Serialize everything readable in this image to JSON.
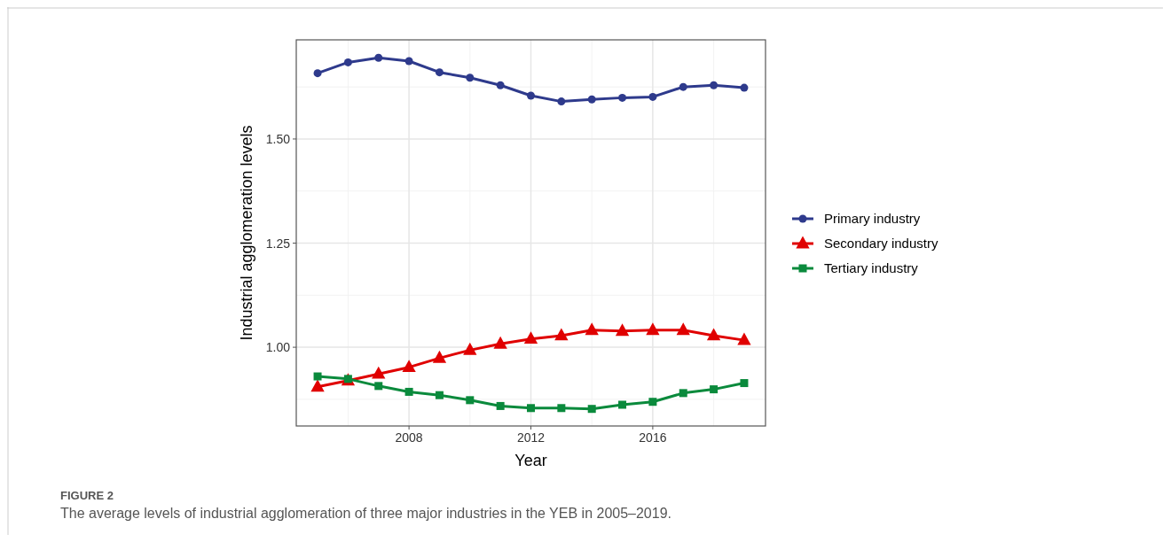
{
  "chart_data": {
    "type": "line",
    "xlabel": "Year",
    "ylabel": "Industrial agglomeration levels",
    "x": [
      2005,
      2006,
      2007,
      2008,
      2009,
      2010,
      2011,
      2012,
      2013,
      2014,
      2015,
      2016,
      2017,
      2018,
      2019
    ],
    "series": [
      {
        "name": "Primary industry",
        "color": "#2e3a8c",
        "marker": "circle",
        "values": [
          1.658,
          1.684,
          1.695,
          1.687,
          1.66,
          1.647,
          1.629,
          1.604,
          1.59,
          1.595,
          1.599,
          1.601,
          1.625,
          1.629,
          1.623
        ]
      },
      {
        "name": "Secondary industry",
        "color": "#e00000",
        "marker": "triangle",
        "values": [
          0.905,
          0.92,
          0.936,
          0.952,
          0.974,
          0.993,
          1.008,
          1.02,
          1.028,
          1.041,
          1.039,
          1.041,
          1.041,
          1.028,
          1.017
        ]
      },
      {
        "name": "Tertiary industry",
        "color": "#0a8a3c",
        "marker": "square",
        "values": [
          0.93,
          0.924,
          0.907,
          0.893,
          0.885,
          0.873,
          0.859,
          0.854,
          0.854,
          0.852,
          0.862,
          0.869,
          0.89,
          0.899,
          0.914
        ]
      }
    ],
    "xlim": [
      2004.3,
      2019.7
    ],
    "xticks": [
      2008,
      2012,
      2016
    ],
    "ylim": [
      0.811,
      1.738
    ],
    "yticks": [
      {
        "value": 1.0,
        "label": "1.00"
      },
      {
        "value": 1.25,
        "label": "1.25"
      },
      {
        "value": 1.5,
        "label": "1.50"
      }
    ],
    "grid": true,
    "legend": "right",
    "line_style": "solid",
    "annotations": [
      "FIGURE 2",
      "The average levels of industrial agglomeration of three major industries in the YEB in 2005–2019."
    ]
  }
}
